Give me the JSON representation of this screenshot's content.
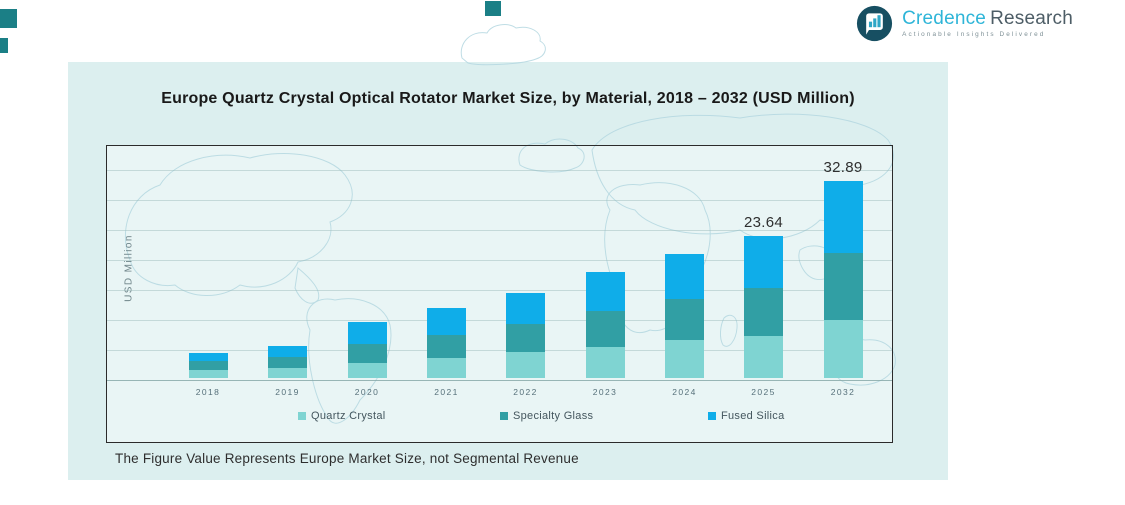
{
  "brand": {
    "word1": "Credence",
    "word2": "Research",
    "tagline": "Actionable Insights Delivered",
    "accent_color": "#2eb5d8",
    "mark_bg_color": "#174f62",
    "mark_bar_color": "#2ea6c6"
  },
  "chart_data": {
    "type": "bar",
    "stacked": true,
    "title": "Europe Quartz Crystal Optical Rotator Market Size, by Material, 2018 – 2032 (USD Million)",
    "ylabel": "USD Million",
    "xlabel": "",
    "categories": [
      "2018",
      "2019",
      "2020",
      "2021",
      "2022",
      "2023",
      "2024",
      "2025",
      "2032"
    ],
    "series": [
      {
        "name": "Quartz Crystal",
        "color": "#7fd4d2",
        "values": [
          1.3,
          1.6,
          2.5,
          3.4,
          4.3,
          5.1,
          6.3,
          7.0,
          9.69
        ]
      },
      {
        "name": "Specialty Glass",
        "color": "#319fa4",
        "values": [
          1.5,
          1.9,
          3.1,
          3.8,
          4.7,
          6.0,
          6.9,
          8.04,
          11.2
        ]
      },
      {
        "name": "Fused Silica",
        "color": "#0fade9",
        "values": [
          1.4,
          1.8,
          3.8,
          4.5,
          5.2,
          6.5,
          7.4,
          8.6,
          12.0
        ]
      }
    ],
    "totals": [
      4.2,
      5.3,
      9.4,
      11.7,
      14.2,
      17.6,
      20.6,
      23.64,
      32.89
    ],
    "data_labels": {
      "2025": "23.64",
      "2032": "32.89"
    },
    "ylim": [
      0,
      35
    ],
    "grid": true,
    "y_tick_labels_shown": false,
    "legend_position": "bottom",
    "footnote": "The Figure Value Represents Europe Market Size, not Segmental Revenue"
  }
}
